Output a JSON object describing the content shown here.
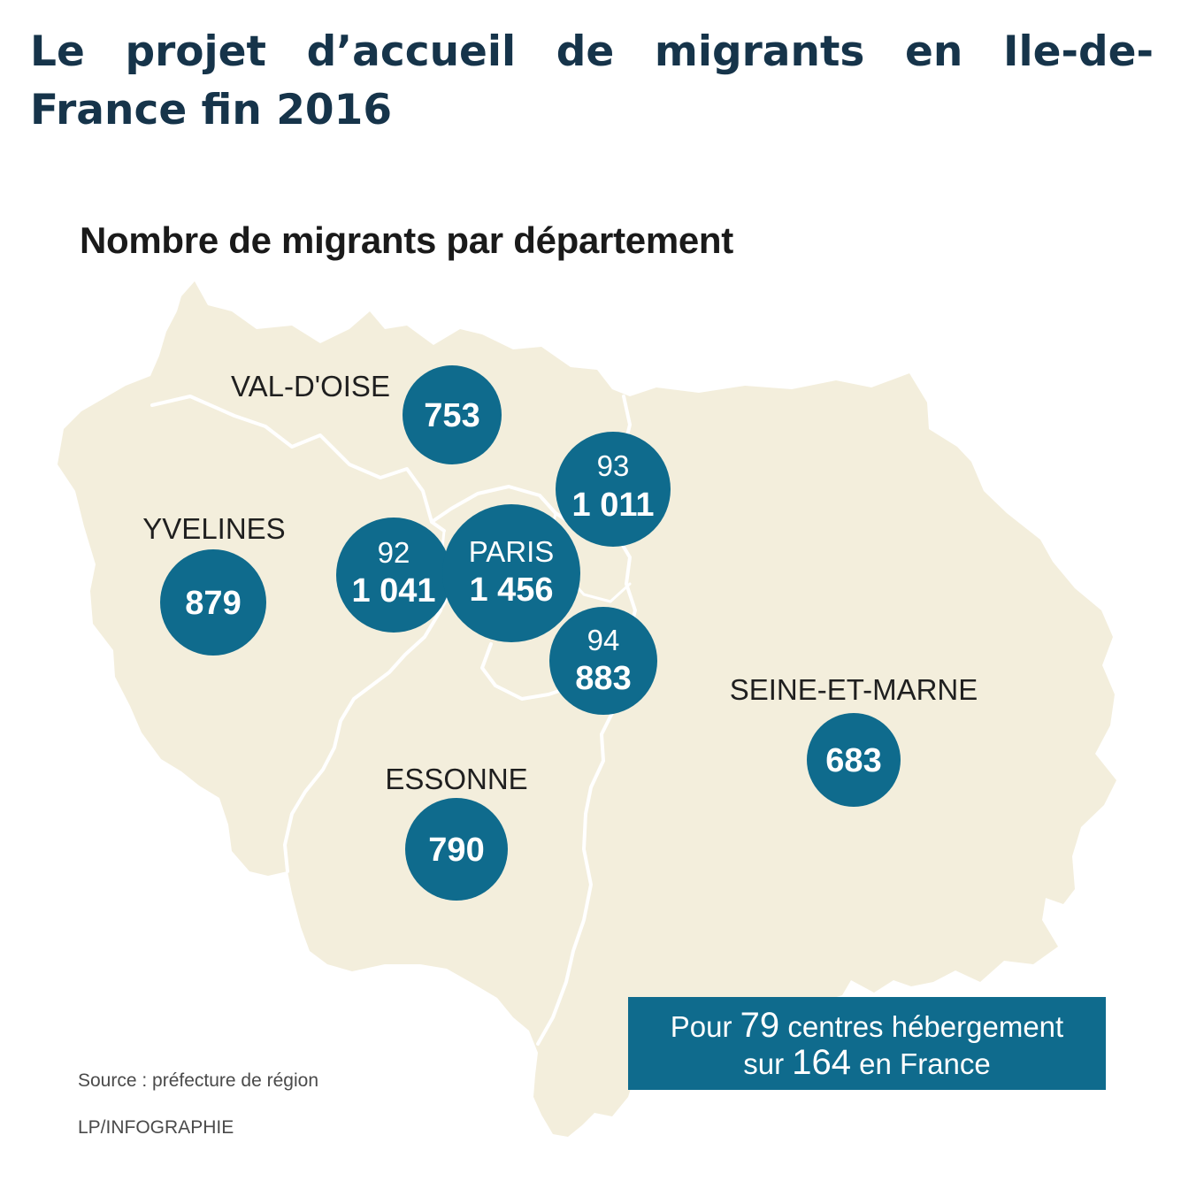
{
  "title": "Le projet d’accueil de migrants en Ile-de-France fin 2016",
  "subtitle": "Nombre de migrants par département",
  "colors": {
    "region_fill": "#f3eedc",
    "border_line": "#ffffff",
    "bubble": "#0f6b8d",
    "title_text": "#16344a"
  },
  "departments": [
    {
      "key": "val_doise",
      "label": "VAL-D'OISE",
      "value": "753"
    },
    {
      "key": "yvelines",
      "label": "YVELINES",
      "value": "879"
    },
    {
      "key": "hauts_de_seine",
      "label": "92",
      "value": "1 041"
    },
    {
      "key": "paris",
      "label": "PARIS",
      "value": "1 456"
    },
    {
      "key": "seine_saint_denis",
      "label": "93",
      "value": "1 011"
    },
    {
      "key": "val_de_marne",
      "label": "94",
      "value": "883"
    },
    {
      "key": "essonne",
      "label": "ESSONNE",
      "value": "790"
    },
    {
      "key": "seine_et_marne",
      "label": "SEINE-ET-MARNE",
      "value": "683"
    }
  ],
  "summary": {
    "prefix": "Pour ",
    "centres": "79",
    "middle": " centres hébergement",
    "line2_prefix": "sur ",
    "total": "164",
    "line2_suffix": " en France"
  },
  "source": "Source : préfecture de région",
  "credit": "LP/INFOGRAPHIE"
}
